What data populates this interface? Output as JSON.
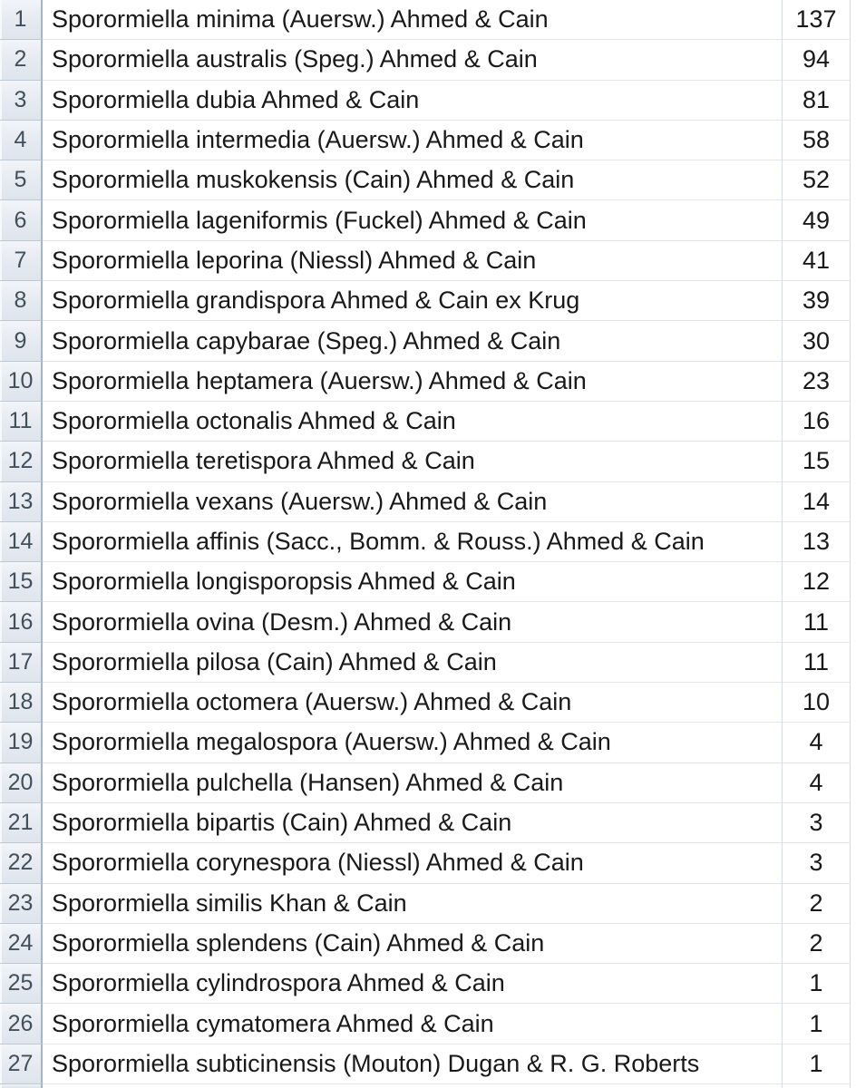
{
  "sheet": {
    "rows": [
      {
        "row": "1",
        "name": "Sporormiella minima (Auersw.) Ahmed & Cain",
        "value": "137"
      },
      {
        "row": "2",
        "name": "Sporormiella australis (Speg.) Ahmed & Cain",
        "value": "94"
      },
      {
        "row": "3",
        "name": "Sporormiella dubia Ahmed & Cain",
        "value": "81"
      },
      {
        "row": "4",
        "name": "Sporormiella intermedia (Auersw.) Ahmed & Cain",
        "value": "58"
      },
      {
        "row": "5",
        "name": "Sporormiella muskokensis (Cain) Ahmed & Cain",
        "value": "52"
      },
      {
        "row": "6",
        "name": "Sporormiella lageniformis (Fuckel) Ahmed & Cain",
        "value": "49"
      },
      {
        "row": "7",
        "name": "Sporormiella leporina (Niessl) Ahmed & Cain",
        "value": "41"
      },
      {
        "row": "8",
        "name": "Sporormiella grandispora Ahmed & Cain ex Krug",
        "value": "39"
      },
      {
        "row": "9",
        "name": "Sporormiella capybarae (Speg.) Ahmed & Cain",
        "value": "30"
      },
      {
        "row": "10",
        "name": "Sporormiella heptamera (Auersw.) Ahmed & Cain",
        "value": "23"
      },
      {
        "row": "11",
        "name": "Sporormiella octonalis Ahmed & Cain",
        "value": "16"
      },
      {
        "row": "12",
        "name": "Sporormiella teretispora Ahmed & Cain",
        "value": "15"
      },
      {
        "row": "13",
        "name": "Sporormiella vexans (Auersw.) Ahmed & Cain",
        "value": "14"
      },
      {
        "row": "14",
        "name": "Sporormiella affinis (Sacc., Bomm. & Rouss.) Ahmed & Cain",
        "value": "13"
      },
      {
        "row": "15",
        "name": "Sporormiella longisporopsis Ahmed & Cain",
        "value": "12"
      },
      {
        "row": "16",
        "name": "Sporormiella ovina (Desm.) Ahmed & Cain",
        "value": "11"
      },
      {
        "row": "17",
        "name": "Sporormiella pilosa (Cain) Ahmed & Cain",
        "value": "11"
      },
      {
        "row": "18",
        "name": "Sporormiella octomera (Auersw.) Ahmed & Cain",
        "value": "10"
      },
      {
        "row": "19",
        "name": "Sporormiella megalospora (Auersw.) Ahmed & Cain",
        "value": "4"
      },
      {
        "row": "20",
        "name": "Sporormiella pulchella (Hansen) Ahmed & Cain",
        "value": "4"
      },
      {
        "row": "21",
        "name": "Sporormiella bipartis (Cain) Ahmed & Cain",
        "value": "3"
      },
      {
        "row": "22",
        "name": "Sporormiella corynespora (Niessl) Ahmed & Cain",
        "value": "3"
      },
      {
        "row": "23",
        "name": "Sporormiella similis Khan & Cain",
        "value": "2"
      },
      {
        "row": "24",
        "name": "Sporormiella splendens (Cain) Ahmed & Cain",
        "value": "2"
      },
      {
        "row": "25",
        "name": "Sporormiella cylindrospora Ahmed & Cain",
        "value": "1"
      },
      {
        "row": "26",
        "name": "Sporormiella cymatomera Ahmed & Cain",
        "value": "1"
      },
      {
        "row": "27",
        "name": "Sporormiella subticinensis (Mouton) Dugan & R. G. Roberts",
        "value": "1"
      }
    ]
  },
  "colors": {
    "row_header_bg": "#e5eaf1",
    "row_header_border": "#a3b5c6",
    "row_header_text": "#42505c",
    "gridline_vertical": "#d6dbe2",
    "gridline_horizontal": "#e2e5ea",
    "cell_text": "#191919",
    "cell_bg": "#ffffff"
  }
}
